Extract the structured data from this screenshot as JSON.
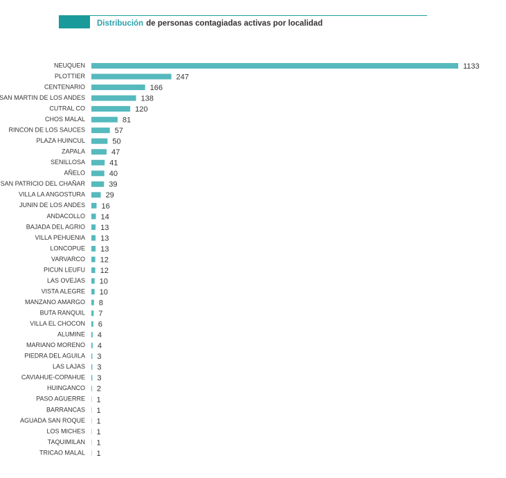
{
  "chart_data": {
    "type": "bar",
    "orientation": "horizontal",
    "title_highlight": "Distribución",
    "title": "de personas contagiadas activas por localidad",
    "color": "#56b9bd",
    "categories": [
      "NEUQUEN",
      "PLOTTIER",
      "CENTENARIO",
      "SAN MARTIN DE LOS ANDES",
      "CUTRAL CO",
      "CHOS MALAL",
      "RINCON DE LOS SAUCES",
      "PLAZA HUINCUL",
      "ZAPALA",
      "SENILLOSA",
      "AÑELO",
      "SAN PATRICIO DEL CHAÑAR",
      "VILLA LA ANGOSTURA",
      "JUNIN DE LOS ANDES",
      "ANDACOLLO",
      "BAJADA DEL AGRIO",
      "VILLA PEHUENIA",
      "LONCOPUE",
      "VARVARCO",
      "PICUN LEUFU",
      "LAS OVEJAS",
      "VISTA ALEGRE",
      "MANZANO AMARGO",
      "BUTA RANQUIL",
      "VILLA EL CHOCON",
      "ALUMINE",
      "MARIANO MORENO",
      "PIEDRA DEL AGUILA",
      "LAS LAJAS",
      "CAVIAHUE-COPAHUE",
      "HUINGANCO",
      "PASO AGUERRE",
      "BARRANCAS",
      "AGUADA SAN ROQUE",
      "LOS MICHES",
      "TAQUIMILAN",
      "TRICAO MALAL"
    ],
    "values": [
      1133,
      247,
      166,
      138,
      120,
      81,
      57,
      50,
      47,
      41,
      40,
      39,
      29,
      16,
      14,
      13,
      13,
      13,
      12,
      12,
      10,
      10,
      8,
      7,
      6,
      4,
      4,
      3,
      3,
      3,
      2,
      1,
      1,
      1,
      1,
      1,
      1
    ]
  }
}
